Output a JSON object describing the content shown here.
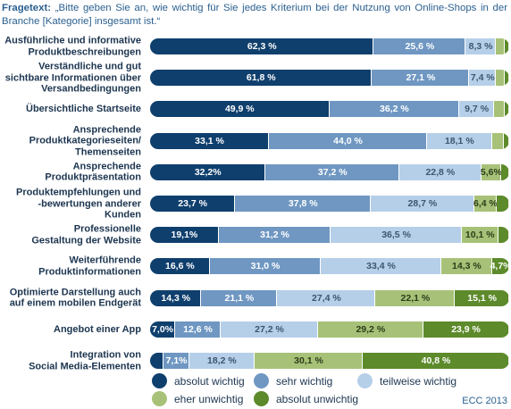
{
  "chart_data": {
    "type": "stacked-barh",
    "question_label": "Fragetext:",
    "title": "„Bitte geben Sie an, wie wichtig für Sie jedes Kriterium bei der Nutzung von Online-Shops in der Branche [Kategorie] insgesamt ist.“",
    "source": "ECC 2013",
    "xlim": [
      0,
      100
    ],
    "categories": [
      "Ausführliche und informative\nProduktbeschreibungen",
      "Verständliche und gut\nsichtbare Informationen über\nVersandbedingungen",
      "Übersichtliche Startseite",
      "Ansprechende\nProduktkategorieseiten/\nThemenseiten",
      "Ansprechende\nProduktpräsentation",
      "Produktempfehlungen und\n-bewertungen anderer Kunden",
      "Professionelle\nGestaltung der Website",
      "Weiterführende\nProduktinformationen",
      "Optimierte Darstellung auch\nauf einem mobilen Endgerät",
      "Angebot einer App",
      "Integration von\nSocial Media-Elementen"
    ],
    "series": [
      {
        "name": "absolut wichtig",
        "color": "#0f3f6d",
        "values": [
          62.3,
          61.8,
          49.9,
          33.1,
          32.2,
          23.7,
          19.1,
          16.6,
          14.3,
          7.0,
          3.8
        ],
        "value_labels": [
          "62,3 %",
          "61,8 %",
          "49,9 %",
          "33,1 %",
          "32,2%",
          "23,7 %",
          "19,1%",
          "16,6 %",
          "14,3 %",
          "7,0%",
          null
        ]
      },
      {
        "name": "sehr wichtig",
        "color": "#6f97c2",
        "values": [
          25.6,
          27.1,
          36.2,
          44.0,
          37.2,
          37.8,
          31.2,
          31.0,
          21.1,
          12.6,
          7.1
        ],
        "value_labels": [
          "25,6 %",
          "27,1 %",
          "36,2 %",
          "44,0 %",
          "37,2 %",
          "37,8 %",
          "31,2 %",
          "31,0 %",
          "21,1 %",
          "12,6 %",
          "7,1%"
        ]
      },
      {
        "name": "teilweise wichtig",
        "color": "#b6cfe9",
        "values": [
          8.3,
          7.4,
          9.7,
          18.1,
          22.8,
          28.7,
          36.5,
          33.4,
          27.4,
          27.2,
          18.2
        ],
        "value_labels": [
          "8,3 %",
          "7,4 %",
          "9,7 %",
          "18,1 %",
          "22,8 %",
          "28,7 %",
          "36,5 %",
          "33,4 %",
          "27,4 %",
          "27,2 %",
          "18,2 %"
        ]
      },
      {
        "name": "eher unwichtig",
        "color": "#a7c278",
        "values": [
          2.5,
          2.5,
          2.9,
          3.3,
          5.6,
          6.4,
          10.1,
          14.3,
          22.1,
          29.2,
          30.1
        ],
        "value_labels": [
          null,
          null,
          null,
          null,
          "5,6%",
          "6,4 %",
          "10,1 %",
          "14,3 %",
          "22,1 %",
          "29,2 %",
          "30,1 %"
        ]
      },
      {
        "name": "absolut unwichtig",
        "color": "#5d8a2b",
        "values": [
          1.3,
          1.2,
          1.3,
          1.5,
          2.2,
          3.4,
          3.1,
          4.7,
          15.1,
          23.9,
          40.8
        ],
        "value_labels": [
          null,
          null,
          null,
          null,
          null,
          null,
          null,
          "4,7%",
          "15,1 %",
          "23,9 %",
          "40,8 %"
        ]
      }
    ]
  }
}
